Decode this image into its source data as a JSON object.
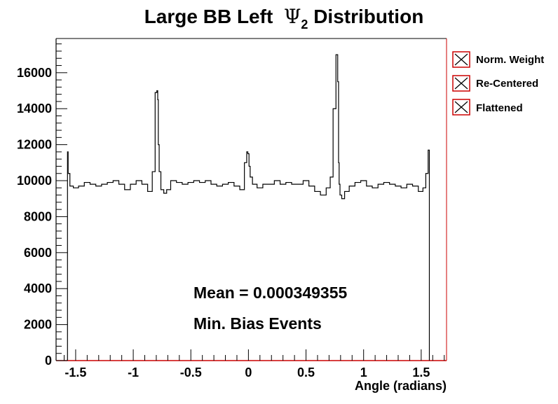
{
  "chart_data": {
    "type": "line",
    "title": "Large BB Left Ψ2 Distribution",
    "title_parts": {
      "prefix": "Large BB Left  ",
      "symbol": "Ψ",
      "subscript": "2",
      "suffix": " Distribution"
    },
    "xlabel": "Angle (radians)",
    "ylabel": "",
    "xlim": [
      -1.67,
      1.72
    ],
    "ylim": [
      0,
      17900
    ],
    "xticks": [
      -1.5,
      -1,
      -0.5,
      0,
      0.5,
      1,
      1.5
    ],
    "xtick_labels": [
      "-1.5",
      "-1",
      "-0.5",
      "0",
      "0.5",
      "1",
      "1.5"
    ],
    "yticks": [
      0,
      2000,
      4000,
      6000,
      8000,
      10000,
      12000,
      14000,
      16000
    ],
    "ytick_labels": [
      "0",
      "2000",
      "4000",
      "6000",
      "8000",
      "10000",
      "12000",
      "14000",
      "16000"
    ],
    "grid": false,
    "legend_position": "right, outside plot",
    "legend": [
      "Norm. Weight",
      "Re-Centered",
      "Flattened"
    ],
    "annotations": [
      "Mean = 0.000349355",
      "Min. Bias Events"
    ],
    "series": [
      {
        "name": "Norm. Weight",
        "x": [
          -1.5708,
          -1.56,
          -1.54,
          -1.5,
          -1.45,
          -1.4,
          -1.35,
          -1.3,
          -1.25,
          -1.2,
          -1.15,
          -1.1,
          -1.05,
          -1.0,
          -0.95,
          -0.9,
          -0.85,
          -0.82,
          -0.8,
          -0.79,
          -0.785,
          -0.78,
          -0.77,
          -0.75,
          -0.72,
          -0.7,
          -0.65,
          -0.6,
          -0.55,
          -0.5,
          -0.45,
          -0.4,
          -0.35,
          -0.3,
          -0.25,
          -0.2,
          -0.15,
          -0.1,
          -0.05,
          -0.02,
          -0.01,
          0.0,
          0.01,
          0.02,
          0.05,
          0.1,
          0.15,
          0.2,
          0.25,
          0.3,
          0.35,
          0.4,
          0.45,
          0.5,
          0.55,
          0.6,
          0.65,
          0.7,
          0.72,
          0.75,
          0.77,
          0.78,
          0.785,
          0.79,
          0.8,
          0.82,
          0.85,
          0.9,
          0.95,
          1.0,
          1.05,
          1.1,
          1.15,
          1.2,
          1.25,
          1.3,
          1.35,
          1.4,
          1.45,
          1.5,
          1.53,
          1.55,
          1.5708
        ],
        "values": [
          11600,
          10400,
          9700,
          9600,
          9700,
          9900,
          9800,
          9700,
          9800,
          9900,
          10000,
          9800,
          9500,
          9800,
          10000,
          9800,
          9400,
          10500,
          14900,
          15000,
          14500,
          12000,
          10500,
          9500,
          9300,
          9500,
          10000,
          9900,
          9800,
          9900,
          10000,
          9900,
          10000,
          9800,
          9700,
          9800,
          9900,
          9700,
          9500,
          11000,
          11600,
          11500,
          10800,
          10200,
          9800,
          9600,
          9800,
          9800,
          10000,
          9800,
          9900,
          9800,
          9800,
          10000,
          9700,
          9400,
          9200,
          9600,
          10200,
          14000,
          17000,
          15500,
          11000,
          9800,
          9200,
          9000,
          9400,
          9700,
          9900,
          10000,
          9700,
          9600,
          9800,
          9900,
          9800,
          9700,
          9600,
          9800,
          9700,
          9400,
          9600,
          10400,
          11700
        ]
      },
      {
        "name": "Re-Centered",
        "values": []
      },
      {
        "name": "Flattened",
        "values": []
      }
    ]
  },
  "colors": {
    "frame_right": "#cc0000",
    "frame": "#000000",
    "line": "#000000",
    "legend_border": "#cc0000"
  },
  "icons": {
    "legend_marker": "crossed-box"
  }
}
